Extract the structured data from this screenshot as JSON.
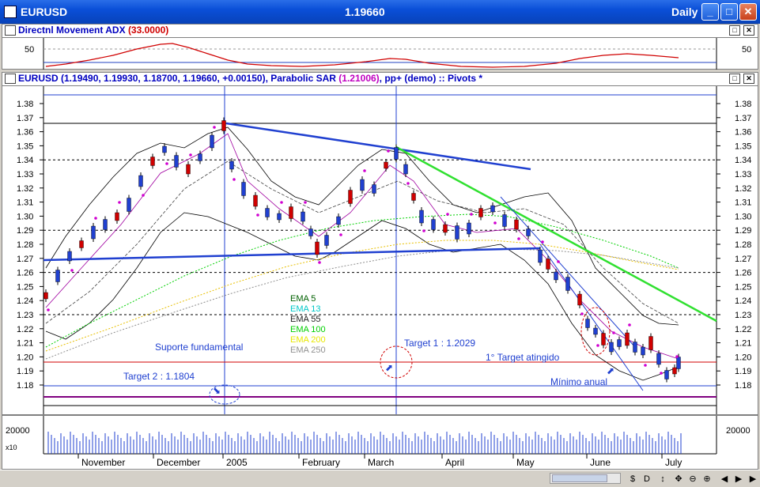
{
  "window": {
    "symbol": "EURUSD",
    "last_price": "1.19660",
    "timeframe": "Daily",
    "buttons": {
      "minimize": "_",
      "maximize": "□",
      "close": "✕"
    }
  },
  "adx_pane": {
    "title": "Directnl Movement ADX",
    "value": "(33.0000)",
    "axis_label": "50"
  },
  "price_pane": {
    "title_prefix": "EURUSD",
    "ohlc": "(1.19490, 1.19930, 1.18700, 1.19660, +0.00150)",
    "sar_label": ", Parabolic SAR",
    "sar_value": "(1.21006)",
    "suffix": ", pp+ (demo) :: Pivots *",
    "y_ticks": [
      "1.38",
      "1.37",
      "1.36",
      "1.35",
      "1.34",
      "1.33",
      "1.32",
      "1.31",
      "1.30",
      "1.29",
      "1.28",
      "1.27",
      "1.26",
      "1.25",
      "1.24",
      "1.23",
      "1.22",
      "1.21",
      "1.20",
      "1.19",
      "1.18"
    ],
    "legend": [
      {
        "label": "EMA 5",
        "color": "#006000"
      },
      {
        "label": "EMA 13",
        "color": "#00c8c8"
      },
      {
        "label": "EMA 55",
        "color": "#202020"
      },
      {
        "label": "EMA 100",
        "color": "#00d000"
      },
      {
        "label": "EMA 200",
        "color": "#e8e800"
      },
      {
        "label": "EMA 250",
        "color": "#909090"
      }
    ],
    "annotations": {
      "support": "Suporte fundamental",
      "target1": "Target 1 : 1.2029",
      "target2": "Target 2 : 1.1804",
      "target_hit": "1° Target atingido",
      "annual_low": "Mínimo anual"
    }
  },
  "volume_pane": {
    "axis_label": "20000",
    "multiplier": "x10",
    "axis_label_right": "20000"
  },
  "x_axis": {
    "months": [
      "November",
      "December",
      "2005",
      "February",
      "March",
      "April",
      "May",
      "June",
      "July"
    ]
  },
  "statusbar": {
    "icons": [
      "scroll-left-icon",
      "date-icon",
      "updown-icon",
      "move-icon",
      "zoom-out-icon",
      "zoom-in-icon",
      "prev-icon",
      "next-icon",
      "play-icon"
    ]
  }
}
